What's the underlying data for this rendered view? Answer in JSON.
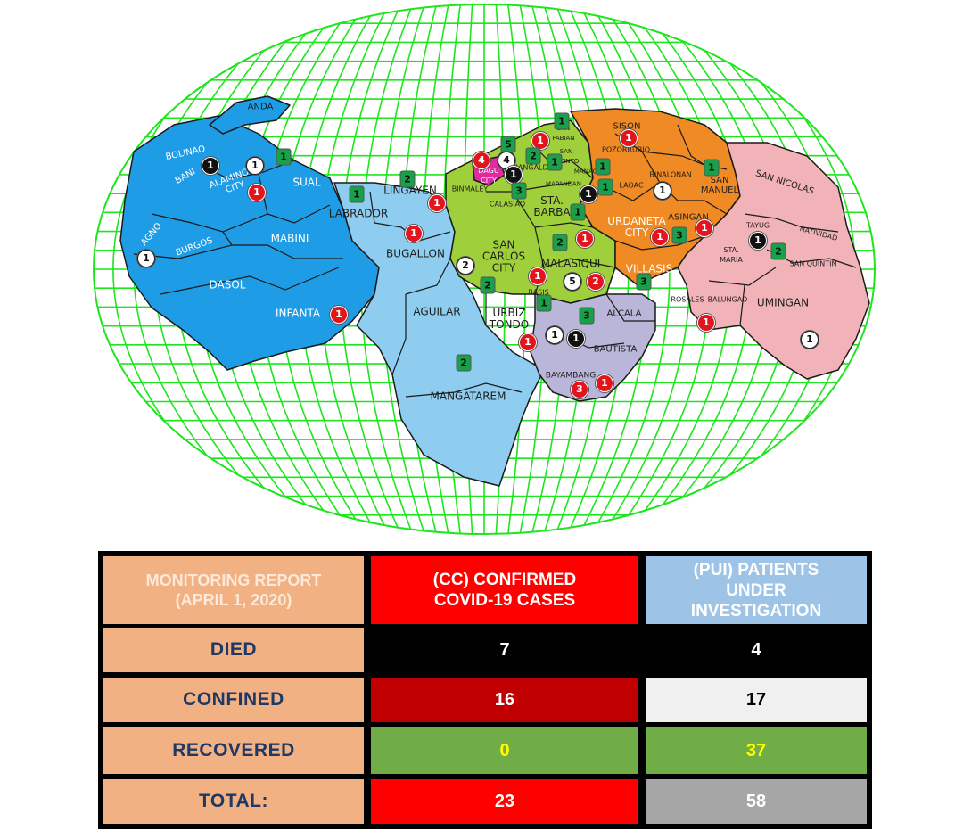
{
  "map": {
    "colors": {
      "west": "#1f9ce6",
      "light_blue": "#8ecdf0",
      "green": "#9fcf3a",
      "orange": "#f08a25",
      "pink": "#f2b3b8",
      "purple": "#b9b6d9",
      "grid": "#1ee51e",
      "dagupan": "#e02ba0"
    },
    "towns": {
      "bolinao": "BOLINAO",
      "anda": "ANDA",
      "bani": "BANI",
      "alaminos": "ALAMINOS\nCITY",
      "sual": "SUAL",
      "agno": "AGNO",
      "burgos": "BURGOS",
      "mabini": "MABINI",
      "dasol": "DASOL",
      "infanta": "INFANTA",
      "labrador": "LABRADOR",
      "lingayen": "LINGAYEN",
      "bugallon": "BUGALLON",
      "aguilar": "AGUILAR",
      "mangatarem": "MANGATAREM",
      "binmaley": "BINMALEY",
      "dagupan": "DAGU\nCITY",
      "calasiao": "CALASIAO",
      "san_carlos": "SAN\nCARLOS\nCITY",
      "sta_barbara": "STA.\nBARBA",
      "malasiqui": "MALASIQUI",
      "basista": "BASIS",
      "urbiztondo": "URBIZ\nTONDO",
      "bayambang": "BAYAMBANG",
      "bautista": "BAUTISTA",
      "alcala": "ALCALA",
      "sison": "SISON",
      "pozorrubio": "POZORRUBIO",
      "san_fabian": "SAN\nFABIAN",
      "san_jacinto": "SAN\nJACINTO",
      "mangaldan": "MANGALDAN",
      "manaoag": "MANAOAG",
      "mapandan": "MAPANDAN",
      "laoac": "LAOAC",
      "binalonan": "BINALONAN",
      "san_manuel": "SAN\nMANUEL",
      "urdaneta": "URDANETA\nCITY",
      "villasis": "VILLASIS",
      "asingan": "ASINGAN",
      "san_nicolas": "SAN NICOLAS",
      "tayug": "TAYUG",
      "natividad": "NATIVIDAD",
      "sta_maria": "STA.\nMARIA",
      "san_quintin": "SAN QUINTIN",
      "rosales": "ROSALES",
      "balungao": "BALUNGAO",
      "umingan": "UMINGAN"
    },
    "markers": {
      "bani_black": "1",
      "alaminos_white": "1",
      "alaminos_red": "1",
      "alaminos_green": "1",
      "burgos_white": "1",
      "infanta_red": "1",
      "lingayen_green": "2",
      "lingayen_red": "1",
      "labrador_green": "1",
      "bugallon_red": "1",
      "mangatarem_green": "2",
      "dagupan_green": "5",
      "dagupan_red": "4",
      "dagupan_white": "4",
      "dagupan_black": "1",
      "sanfabian_green": "1",
      "sanfabian_red": "1",
      "mangaldan_green": "2",
      "sanjacinto_green": "1",
      "manaoag_green": "1",
      "calasiao_green": "3",
      "binmaley_black": "1",
      "stabarbara_green": "1",
      "sancarlos_white": "2",
      "sancarlos_green": "2",
      "malasiqui_green": "2",
      "malasiqui_red1": "1",
      "malasiqui_white": "5",
      "malasiqui_red2": "2",
      "basista_red": "1",
      "basista_green": "1",
      "urbiztondo_red": "1",
      "bayambang_white": "1",
      "bayambang_black": "1",
      "alcala_green": "3",
      "bayambang_red1": "3",
      "bayambang_red2": "1",
      "villasis_green": "3",
      "pozorrubio_red": "1",
      "laoac_green": "1",
      "laoac_white": "1",
      "sanmanuel_green": "1",
      "urdaneta_red": "1",
      "urdaneta_green": "3",
      "asingan_red": "1",
      "tayug_black": "1",
      "tayug_green": "2",
      "rosales_red": "1",
      "umingan_white": "1"
    }
  },
  "report": {
    "header": {
      "label": "MONITORING REPORT\n(APRIL 1, 2020)",
      "cc": "(CC) CONFIRMED\nCOVID-19 CASES",
      "pui": "(PUI) PATIENTS\nUNDER\nINVESTIGATION"
    },
    "rows": [
      {
        "label": "DIED",
        "cc": "7",
        "pui": "4"
      },
      {
        "label": "CONFINED",
        "cc": "16",
        "pui": "17"
      },
      {
        "label": "RECOVERED",
        "cc": "0",
        "pui": "37"
      },
      {
        "label": "TOTAL:",
        "cc": "23",
        "pui": "58"
      }
    ],
    "colors": {
      "label_bg": "#f2b183",
      "label_text": "#1f3864",
      "died_cc": "#000000",
      "died_pui": "#000000",
      "confined_cc": "#c00000",
      "confined_pui": "#f0f0f0",
      "recovered_bg": "#70ad47",
      "recovered_text": "#ffff00",
      "total_cc": "#fe0000",
      "total_pui": "#a6a6a6"
    }
  }
}
